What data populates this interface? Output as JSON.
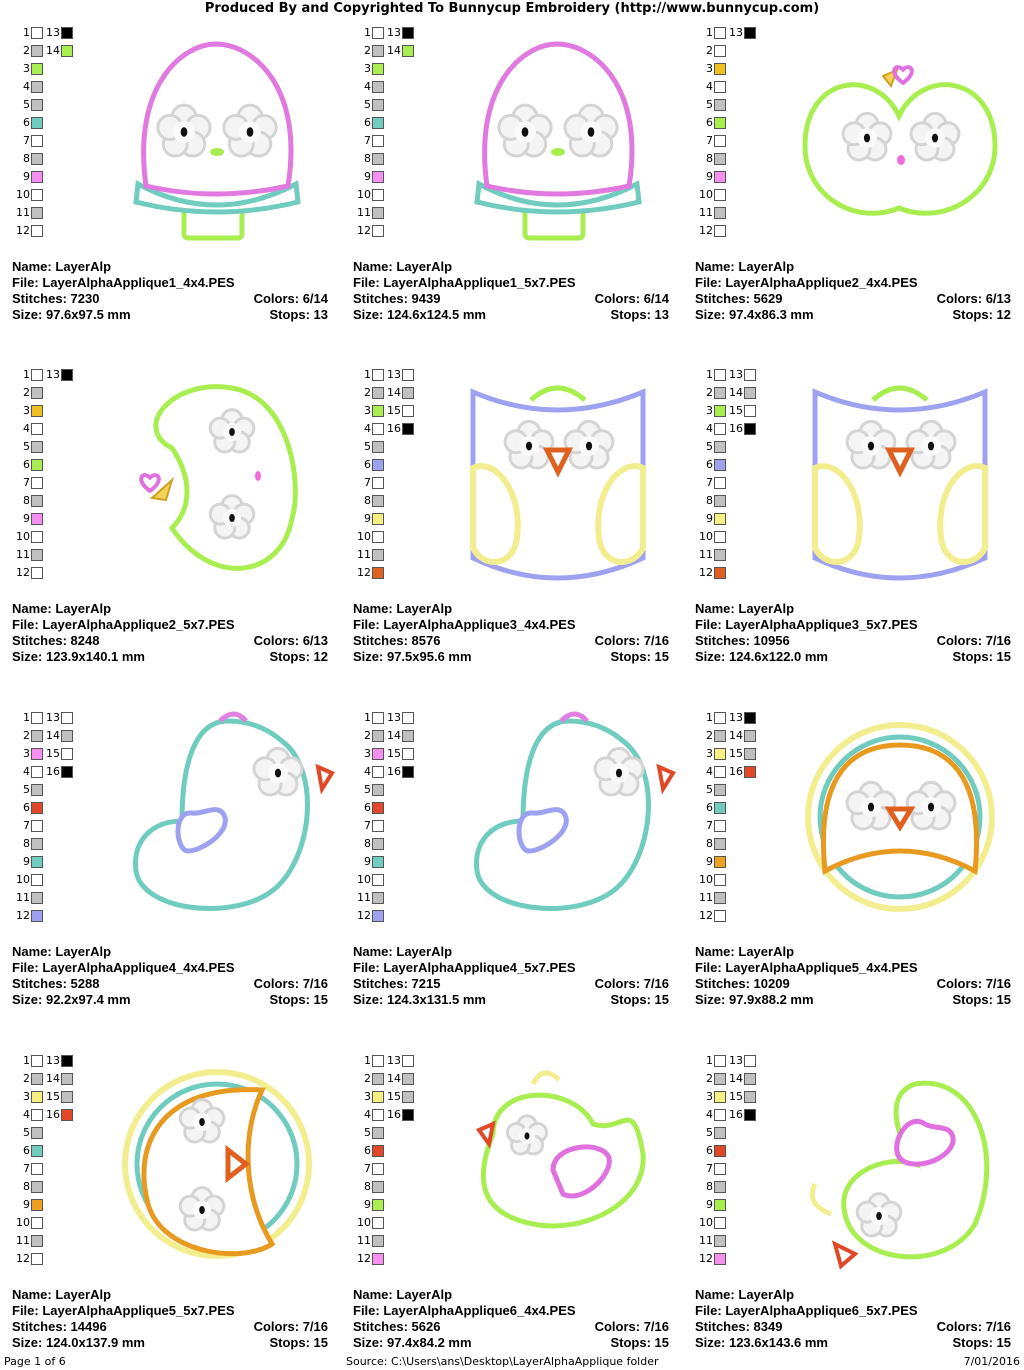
{
  "header": "Produced By and Copyrighted To Bunnycup Embroidery (http://www.bunnycup.com)",
  "labels": {
    "name": "Name:",
    "file": "File:",
    "stitches": "Stitches:",
    "size": "Size:",
    "colors": "Colors:",
    "stops": "Stops:"
  },
  "designs": [
    {
      "name": "LayerAlp",
      "file": "LayerAlphaApplique1_4x4.PES",
      "stitches": "7230",
      "colors": "6/14",
      "size": "97.6x97.5 mm",
      "stops": "13",
      "swatches": [
        {
          "n": "1",
          "c": "#ffffff"
        },
        {
          "n": "2",
          "c": "#c0c0c0"
        },
        {
          "n": "3",
          "c": "#a8ee50"
        },
        {
          "n": "4",
          "c": "#c0c0c0"
        },
        {
          "n": "5",
          "c": "#c0c0c0"
        },
        {
          "n": "6",
          "c": "#70ccbe"
        },
        {
          "n": "7",
          "c": "#ffffff"
        },
        {
          "n": "8",
          "c": "#c0c0c0"
        },
        {
          "n": "9",
          "c": "#f690f0"
        },
        {
          "n": "10",
          "c": "#ffffff"
        },
        {
          "n": "11",
          "c": "#c0c0c0"
        },
        {
          "n": "12",
          "c": "#ffffff"
        },
        {
          "n": "13",
          "c": "#000000"
        },
        {
          "n": "14",
          "c": "#a8ee50"
        }
      ],
      "art": "mushroom"
    },
    {
      "name": "LayerAlp",
      "file": "LayerAlphaApplique1_5x7.PES",
      "stitches": "9439",
      "colors": "6/14",
      "size": "124.6x124.5 mm",
      "stops": "13",
      "swatches": [
        {
          "n": "1",
          "c": "#ffffff"
        },
        {
          "n": "2",
          "c": "#c0c0c0"
        },
        {
          "n": "3",
          "c": "#a8ee50"
        },
        {
          "n": "4",
          "c": "#c0c0c0"
        },
        {
          "n": "5",
          "c": "#c0c0c0"
        },
        {
          "n": "6",
          "c": "#70ccbe"
        },
        {
          "n": "7",
          "c": "#ffffff"
        },
        {
          "n": "8",
          "c": "#c0c0c0"
        },
        {
          "n": "9",
          "c": "#f690f0"
        },
        {
          "n": "10",
          "c": "#ffffff"
        },
        {
          "n": "11",
          "c": "#c0c0c0"
        },
        {
          "n": "12",
          "c": "#ffffff"
        },
        {
          "n": "13",
          "c": "#000000"
        },
        {
          "n": "14",
          "c": "#a8ee50"
        }
      ],
      "art": "mushroom"
    },
    {
      "name": "LayerAlp",
      "file": "LayerAlphaApplique2_4x4.PES",
      "stitches": "5629",
      "colors": "6/13",
      "size": "97.4x86.3 mm",
      "stops": "12",
      "swatches": [
        {
          "n": "1",
          "c": "#ffffff"
        },
        {
          "n": "2",
          "c": "#ffffff"
        },
        {
          "n": "3",
          "c": "#f0c020"
        },
        {
          "n": "4",
          "c": "#ffffff"
        },
        {
          "n": "5",
          "c": "#c0c0c0"
        },
        {
          "n": "6",
          "c": "#a8ee50"
        },
        {
          "n": "7",
          "c": "#ffffff"
        },
        {
          "n": "8",
          "c": "#c0c0c0"
        },
        {
          "n": "9",
          "c": "#f690f0"
        },
        {
          "n": "10",
          "c": "#ffffff"
        },
        {
          "n": "11",
          "c": "#c0c0c0"
        },
        {
          "n": "12",
          "c": "#ffffff"
        },
        {
          "n": "13",
          "c": "#000000"
        }
      ],
      "art": "apple"
    },
    {
      "name": "LayerAlp",
      "file": "LayerAlphaApplique2_5x7.PES",
      "stitches": "8248",
      "colors": "6/13",
      "size": "123.9x140.1 mm",
      "stops": "12",
      "swatches": [
        {
          "n": "1",
          "c": "#ffffff"
        },
        {
          "n": "2",
          "c": "#c0c0c0"
        },
        {
          "n": "3",
          "c": "#f0c020"
        },
        {
          "n": "4",
          "c": "#ffffff"
        },
        {
          "n": "5",
          "c": "#c0c0c0"
        },
        {
          "n": "6",
          "c": "#a8ee50"
        },
        {
          "n": "7",
          "c": "#ffffff"
        },
        {
          "n": "8",
          "c": "#c0c0c0"
        },
        {
          "n": "9",
          "c": "#f690f0"
        },
        {
          "n": "10",
          "c": "#ffffff"
        },
        {
          "n": "11",
          "c": "#c0c0c0"
        },
        {
          "n": "12",
          "c": "#ffffff"
        },
        {
          "n": "13",
          "c": "#000000"
        }
      ],
      "art": "apple-side"
    },
    {
      "name": "LayerAlp",
      "file": "LayerAlphaApplique3_4x4.PES",
      "stitches": "8576",
      "colors": "7/16",
      "size": "97.5x95.6 mm",
      "stops": "15",
      "swatches": [
        {
          "n": "1",
          "c": "#ffffff"
        },
        {
          "n": "2",
          "c": "#c0c0c0"
        },
        {
          "n": "3",
          "c": "#a8ee50"
        },
        {
          "n": "4",
          "c": "#ffffff"
        },
        {
          "n": "5",
          "c": "#c0c0c0"
        },
        {
          "n": "6",
          "c": "#9ea0f0"
        },
        {
          "n": "7",
          "c": "#ffffff"
        },
        {
          "n": "8",
          "c": "#c0c0c0"
        },
        {
          "n": "9",
          "c": "#f6f080"
        },
        {
          "n": "10",
          "c": "#ffffff"
        },
        {
          "n": "11",
          "c": "#c0c0c0"
        },
        {
          "n": "12",
          "c": "#e06020"
        },
        {
          "n": "13",
          "c": "#ffffff"
        },
        {
          "n": "14",
          "c": "#c0c0c0"
        },
        {
          "n": "15",
          "c": "#ffffff"
        },
        {
          "n": "16",
          "c": "#000000"
        }
      ],
      "art": "owl"
    },
    {
      "name": "LayerAlp",
      "file": "LayerAlphaApplique3_5x7.PES",
      "stitches": "10956",
      "colors": "7/16",
      "size": "124.6x122.0 mm",
      "stops": "15",
      "swatches": [
        {
          "n": "1",
          "c": "#ffffff"
        },
        {
          "n": "2",
          "c": "#c0c0c0"
        },
        {
          "n": "3",
          "c": "#a8ee50"
        },
        {
          "n": "4",
          "c": "#ffffff"
        },
        {
          "n": "5",
          "c": "#c0c0c0"
        },
        {
          "n": "6",
          "c": "#9ea0f0"
        },
        {
          "n": "7",
          "c": "#ffffff"
        },
        {
          "n": "8",
          "c": "#c0c0c0"
        },
        {
          "n": "9",
          "c": "#f6f080"
        },
        {
          "n": "10",
          "c": "#ffffff"
        },
        {
          "n": "11",
          "c": "#c0c0c0"
        },
        {
          "n": "12",
          "c": "#e06020"
        },
        {
          "n": "13",
          "c": "#ffffff"
        },
        {
          "n": "14",
          "c": "#c0c0c0"
        },
        {
          "n": "15",
          "c": "#ffffff"
        },
        {
          "n": "16",
          "c": "#000000"
        }
      ],
      "art": "owl"
    },
    {
      "name": "LayerAlp",
      "file": "LayerAlphaApplique4_4x4.PES",
      "stitches": "5288",
      "colors": "7/16",
      "size": "92.2x97.4 mm",
      "stops": "15",
      "swatches": [
        {
          "n": "1",
          "c": "#ffffff"
        },
        {
          "n": "2",
          "c": "#c0c0c0"
        },
        {
          "n": "3",
          "c": "#f690f0"
        },
        {
          "n": "4",
          "c": "#ffffff"
        },
        {
          "n": "5",
          "c": "#c0c0c0"
        },
        {
          "n": "6",
          "c": "#e04828"
        },
        {
          "n": "7",
          "c": "#ffffff"
        },
        {
          "n": "8",
          "c": "#c0c0c0"
        },
        {
          "n": "9",
          "c": "#70ccbe"
        },
        {
          "n": "10",
          "c": "#ffffff"
        },
        {
          "n": "11",
          "c": "#c0c0c0"
        },
        {
          "n": "12",
          "c": "#9ea0f0"
        },
        {
          "n": "13",
          "c": "#ffffff"
        },
        {
          "n": "14",
          "c": "#c0c0c0"
        },
        {
          "n": "15",
          "c": "#ffffff"
        },
        {
          "n": "16",
          "c": "#000000"
        }
      ],
      "art": "bird"
    },
    {
      "name": "LayerAlp",
      "file": "LayerAlphaApplique4_5x7.PES",
      "stitches": "7215",
      "colors": "7/16",
      "size": "124.3x131.5 mm",
      "stops": "15",
      "swatches": [
        {
          "n": "1",
          "c": "#ffffff"
        },
        {
          "n": "2",
          "c": "#c0c0c0"
        },
        {
          "n": "3",
          "c": "#f690f0"
        },
        {
          "n": "4",
          "c": "#ffffff"
        },
        {
          "n": "5",
          "c": "#c0c0c0"
        },
        {
          "n": "6",
          "c": "#e04828"
        },
        {
          "n": "7",
          "c": "#ffffff"
        },
        {
          "n": "8",
          "c": "#c0c0c0"
        },
        {
          "n": "9",
          "c": "#70ccbe"
        },
        {
          "n": "10",
          "c": "#ffffff"
        },
        {
          "n": "11",
          "c": "#c0c0c0"
        },
        {
          "n": "12",
          "c": "#9ea0f0"
        },
        {
          "n": "13",
          "c": "#ffffff"
        },
        {
          "n": "14",
          "c": "#c0c0c0"
        },
        {
          "n": "15",
          "c": "#ffffff"
        },
        {
          "n": "16",
          "c": "#000000"
        }
      ],
      "art": "bird"
    },
    {
      "name": "LayerAlp",
      "file": "LayerAlphaApplique5_4x4.PES",
      "stitches": "10209",
      "colors": "7/16",
      "size": "97.9x88.2 mm",
      "stops": "15",
      "swatches": [
        {
          "n": "1",
          "c": "#ffffff"
        },
        {
          "n": "2",
          "c": "#c0c0c0"
        },
        {
          "n": "3",
          "c": "#f6f080"
        },
        {
          "n": "4",
          "c": "#ffffff"
        },
        {
          "n": "5",
          "c": "#c0c0c0"
        },
        {
          "n": "6",
          "c": "#70ccbe"
        },
        {
          "n": "7",
          "c": "#ffffff"
        },
        {
          "n": "8",
          "c": "#c0c0c0"
        },
        {
          "n": "9",
          "c": "#f0a020"
        },
        {
          "n": "10",
          "c": "#ffffff"
        },
        {
          "n": "11",
          "c": "#c0c0c0"
        },
        {
          "n": "12",
          "c": "#ffffff"
        },
        {
          "n": "13",
          "c": "#000000"
        },
        {
          "n": "14",
          "c": "#c0c0c0"
        },
        {
          "n": "15",
          "c": "#c0c0c0"
        },
        {
          "n": "16",
          "c": "#e04828"
        }
      ],
      "art": "round"
    },
    {
      "name": "LayerAlp",
      "file": "LayerAlphaApplique5_5x7.PES",
      "stitches": "14496",
      "colors": "7/16",
      "size": "124.0x137.9 mm",
      "stops": "15",
      "swatches": [
        {
          "n": "1",
          "c": "#ffffff"
        },
        {
          "n": "2",
          "c": "#c0c0c0"
        },
        {
          "n": "3",
          "c": "#f6f080"
        },
        {
          "n": "4",
          "c": "#ffffff"
        },
        {
          "n": "5",
          "c": "#c0c0c0"
        },
        {
          "n": "6",
          "c": "#70ccbe"
        },
        {
          "n": "7",
          "c": "#ffffff"
        },
        {
          "n": "8",
          "c": "#c0c0c0"
        },
        {
          "n": "9",
          "c": "#f0a020"
        },
        {
          "n": "10",
          "c": "#ffffff"
        },
        {
          "n": "11",
          "c": "#c0c0c0"
        },
        {
          "n": "12",
          "c": "#ffffff"
        },
        {
          "n": "13",
          "c": "#000000"
        },
        {
          "n": "14",
          "c": "#c0c0c0"
        },
        {
          "n": "15",
          "c": "#c0c0c0"
        },
        {
          "n": "16",
          "c": "#e04828"
        }
      ],
      "art": "round-side"
    },
    {
      "name": "LayerAlp",
      "file": "LayerAlphaApplique6_4x4.PES",
      "stitches": "5626",
      "colors": "7/16",
      "size": "97.4x84.2 mm",
      "stops": "15",
      "swatches": [
        {
          "n": "1",
          "c": "#ffffff"
        },
        {
          "n": "2",
          "c": "#c0c0c0"
        },
        {
          "n": "3",
          "c": "#f6f080"
        },
        {
          "n": "4",
          "c": "#ffffff"
        },
        {
          "n": "5",
          "c": "#c0c0c0"
        },
        {
          "n": "6",
          "c": "#e04828"
        },
        {
          "n": "7",
          "c": "#ffffff"
        },
        {
          "n": "8",
          "c": "#c0c0c0"
        },
        {
          "n": "9",
          "c": "#a8ee50"
        },
        {
          "n": "10",
          "c": "#ffffff"
        },
        {
          "n": "11",
          "c": "#c0c0c0"
        },
        {
          "n": "12",
          "c": "#f690f0"
        },
        {
          "n": "13",
          "c": "#ffffff"
        },
        {
          "n": "14",
          "c": "#c0c0c0"
        },
        {
          "n": "15",
          "c": "#c0c0c0"
        },
        {
          "n": "16",
          "c": "#000000"
        }
      ],
      "art": "chick"
    },
    {
      "name": "LayerAlp",
      "file": "LayerAlphaApplique6_5x7.PES",
      "stitches": "8349",
      "colors": "7/16",
      "size": "123.6x143.6 mm",
      "stops": "15",
      "swatches": [
        {
          "n": "1",
          "c": "#ffffff"
        },
        {
          "n": "2",
          "c": "#c0c0c0"
        },
        {
          "n": "3",
          "c": "#f6f080"
        },
        {
          "n": "4",
          "c": "#ffffff"
        },
        {
          "n": "5",
          "c": "#c0c0c0"
        },
        {
          "n": "6",
          "c": "#e04828"
        },
        {
          "n": "7",
          "c": "#ffffff"
        },
        {
          "n": "8",
          "c": "#c0c0c0"
        },
        {
          "n": "9",
          "c": "#a8ee50"
        },
        {
          "n": "10",
          "c": "#ffffff"
        },
        {
          "n": "11",
          "c": "#c0c0c0"
        },
        {
          "n": "12",
          "c": "#f690f0"
        },
        {
          "n": "13",
          "c": "#ffffff"
        },
        {
          "n": "14",
          "c": "#c0c0c0"
        },
        {
          "n": "15",
          "c": "#c0c0c0"
        },
        {
          "n": "16",
          "c": "#000000"
        }
      ],
      "art": "chick-side"
    }
  ],
  "footer": {
    "page": "Page 1 of 6",
    "source": "Source: C:\\Users\\ans\\Desktop\\LayerAlphaApplique folder",
    "date": "7/01/2016"
  },
  "colors": {
    "outline_green": "#a8ee50",
    "outline_pink": "#e080e0",
    "outline_teal": "#70ccbe",
    "outline_purple": "#9ea0f0",
    "outline_yellow": "#f2ee90",
    "outline_orange": "#e89a20",
    "beak_orange": "#e06020"
  }
}
